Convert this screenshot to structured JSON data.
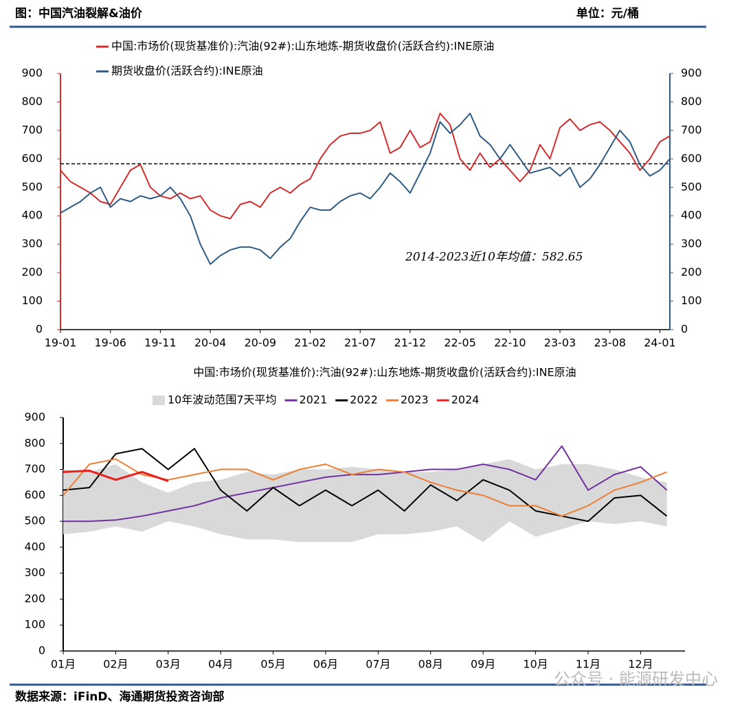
{
  "header": {
    "title": "图：中国汽油裂解&油价",
    "unit": "单位：元/桶"
  },
  "footer": {
    "source": "数据来源：iFinD、海通期货投资咨询部",
    "watermark": "公众号 · 能源研发中心"
  },
  "chart_data": [
    {
      "type": "line",
      "x": [
        "19-01",
        null,
        null,
        null,
        null,
        "19-06",
        null,
        null,
        null,
        null,
        "19-11",
        null,
        null,
        null,
        null,
        "20-04",
        null,
        null,
        null,
        null,
        "20-09",
        null,
        null,
        null,
        null,
        "21-02",
        null,
        null,
        null,
        null,
        "21-07",
        null,
        null,
        null,
        null,
        "21-12",
        null,
        null,
        null,
        null,
        "22-05",
        null,
        null,
        null,
        null,
        "22-10",
        null,
        null,
        null,
        null,
        "23-03",
        null,
        null,
        null,
        null,
        "23-08",
        null,
        null,
        null,
        null,
        "24-01",
        null
      ],
      "series": [
        {
          "name": "中国:市场价(现货基准价):汽油(92#):山东地炼-期货收盘价(活跃合约):INE原油",
          "color": "#d42a2a",
          "values": [
            560,
            520,
            500,
            480,
            450,
            440,
            500,
            560,
            580,
            500,
            470,
            460,
            480,
            460,
            470,
            420,
            400,
            390,
            440,
            450,
            430,
            480,
            500,
            480,
            510,
            530,
            600,
            650,
            680,
            690,
            690,
            700,
            730,
            620,
            640,
            700,
            640,
            660,
            760,
            720,
            600,
            560,
            620,
            570,
            600,
            560,
            520,
            560,
            650,
            600,
            710,
            740,
            700,
            720,
            730,
            700,
            660,
            620,
            560,
            600,
            660,
            680
          ]
        },
        {
          "name": "期货收盘价(活跃合约):INE原油",
          "color": "#2c5a85",
          "axis": "y2",
          "values": [
            410,
            430,
            450,
            480,
            500,
            430,
            460,
            450,
            470,
            460,
            470,
            500,
            460,
            400,
            300,
            230,
            260,
            280,
            290,
            290,
            280,
            250,
            290,
            320,
            380,
            430,
            420,
            420,
            450,
            470,
            480,
            460,
            500,
            550,
            520,
            480,
            550,
            620,
            730,
            690,
            720,
            760,
            680,
            650,
            600,
            650,
            600,
            550,
            560,
            570,
            540,
            570,
            500,
            530,
            580,
            640,
            700,
            660,
            580,
            540,
            560,
            600
          ]
        }
      ],
      "ylim": [
        0,
        900
      ],
      "yticks": [
        0,
        100,
        200,
        300,
        400,
        500,
        600,
        700,
        800,
        900
      ],
      "y2lim": [
        0,
        900
      ],
      "y2ticks": [
        0,
        100,
        200,
        300,
        400,
        500,
        600,
        700,
        800,
        900
      ],
      "reference": {
        "value": 582.65,
        "label": "2014-2023近10年均值：582.65"
      }
    },
    {
      "type": "line",
      "title": "中国:市场价(现货基准价):汽油(92#):山东地炼-期货收盘价(活跃合约):INE原油",
      "x": [
        "01月",
        null,
        "02月",
        null,
        "03月",
        null,
        "04月",
        null,
        "05月",
        null,
        "06月",
        null,
        "07月",
        null,
        "08月",
        null,
        "09月",
        null,
        "10月",
        null,
        "11月",
        null,
        "12月",
        null
      ],
      "band": {
        "name": "10年波动范围7天平均",
        "color": "#d9d9d9",
        "upper": [
          700,
          690,
          720,
          650,
          610,
          650,
          660,
          690,
          680,
          700,
          700,
          710,
          700,
          690,
          690,
          700,
          720,
          740,
          700,
          720,
          720,
          700,
          670,
          650
        ],
        "lower": [
          450,
          460,
          480,
          460,
          500,
          480,
          450,
          430,
          430,
          420,
          420,
          420,
          450,
          450,
          460,
          480,
          420,
          500,
          440,
          470,
          500,
          490,
          500,
          480
        ]
      },
      "series": [
        {
          "name": "2021",
          "color": "#7030a0",
          "values": [
            500,
            500,
            505,
            520,
            540,
            560,
            590,
            610,
            630,
            650,
            670,
            680,
            680,
            690,
            700,
            700,
            720,
            700,
            660,
            790,
            620,
            680,
            710,
            620
          ]
        },
        {
          "name": "2022",
          "color": "#000000",
          "values": [
            620,
            630,
            760,
            780,
            700,
            780,
            620,
            540,
            630,
            560,
            620,
            560,
            620,
            540,
            640,
            580,
            660,
            620,
            540,
            520,
            500,
            590,
            600,
            520
          ]
        },
        {
          "name": "2023",
          "color": "#ed7d31",
          "values": [
            600,
            720,
            740,
            680,
            660,
            680,
            700,
            700,
            660,
            700,
            720,
            680,
            700,
            690,
            650,
            620,
            600,
            560,
            560,
            520,
            560,
            620,
            650,
            690
          ]
        },
        {
          "name": "2024",
          "color": "#e8201c",
          "values": [
            690,
            695,
            660,
            690,
            655,
            null,
            null,
            null,
            null,
            null,
            null,
            null,
            null,
            null,
            null,
            null,
            null,
            null,
            null,
            null,
            null,
            null,
            null,
            null
          ]
        }
      ],
      "ylim": [
        0,
        900
      ],
      "yticks": [
        0,
        100,
        200,
        300,
        400,
        500,
        600,
        700,
        800,
        900
      ]
    }
  ]
}
